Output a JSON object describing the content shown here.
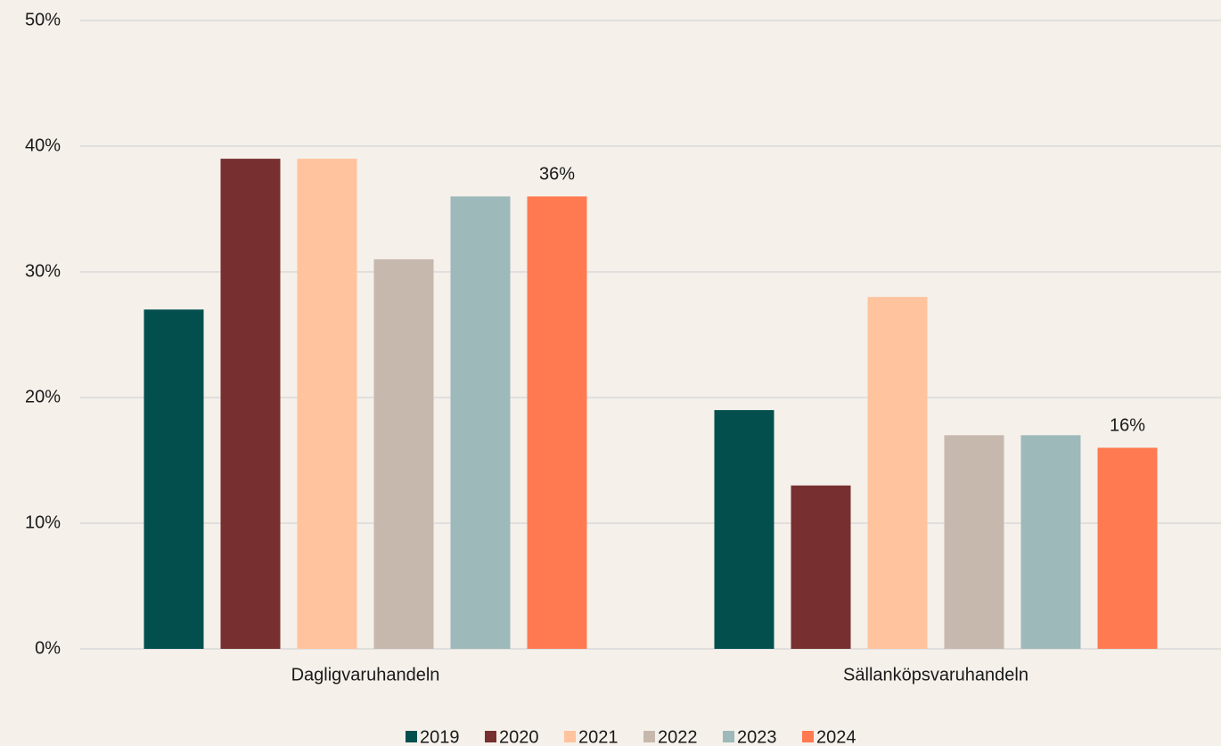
{
  "chart_data": {
    "type": "bar",
    "categories": [
      "Dagligvaruhandeln",
      "Sällanköpsvaruhandeln"
    ],
    "series": [
      {
        "name": "2019",
        "color": "#024f4e",
        "values": [
          27,
          19
        ]
      },
      {
        "name": "2020",
        "color": "#772f2f",
        "values": [
          39,
          13
        ]
      },
      {
        "name": "2021",
        "color": "#ffc39d",
        "values": [
          39,
          28
        ]
      },
      {
        "name": "2022",
        "color": "#c7b8ae",
        "values": [
          31,
          17
        ]
      },
      {
        "name": "2023",
        "color": "#9db9b9",
        "values": [
          36,
          17
        ]
      },
      {
        "name": "2024",
        "color": "#ff7a50",
        "values": [
          36,
          16
        ],
        "value_labels": [
          "36%",
          "16%"
        ]
      }
    ],
    "ylim": [
      0,
      50
    ],
    "yticks": [
      {
        "value": 0,
        "label": "0%"
      },
      {
        "value": 10,
        "label": "10%"
      },
      {
        "value": 20,
        "label": "20%"
      },
      {
        "value": 30,
        "label": "30%"
      },
      {
        "value": 40,
        "label": "40%"
      },
      {
        "value": 50,
        "label": "50%"
      }
    ],
    "grid": true,
    "legend": "bottom"
  }
}
